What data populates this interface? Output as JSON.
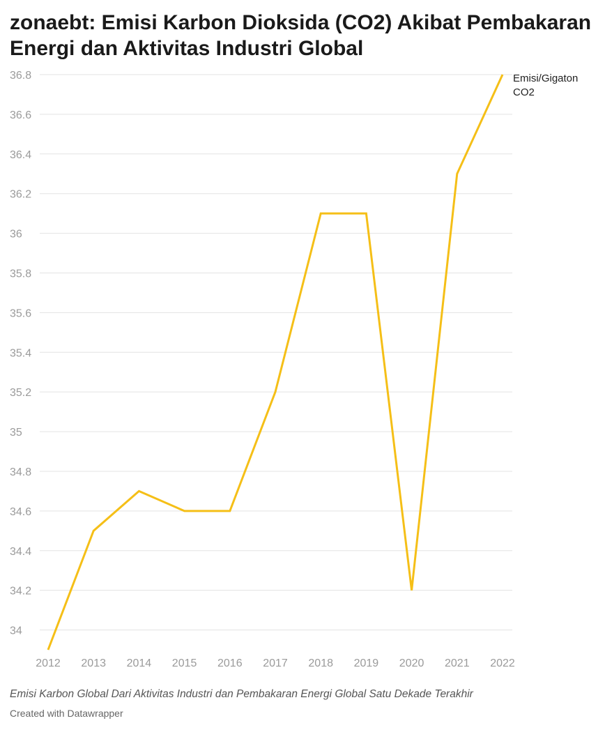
{
  "title": "zonaebt: Emisi Karbon Dioksida (CO2) Akibat Pembakaran Energi dan Aktivitas Industri Global",
  "notes": "Emisi Karbon Global Dari Aktivitas Industri dan Pembakaran Energi Global Satu Dekade Terakhir",
  "byline": "Created with Datawrapper",
  "chart_data": {
    "type": "line",
    "x": [
      "2012",
      "2013",
      "2014",
      "2015",
      "2016",
      "2017",
      "2018",
      "2019",
      "2020",
      "2021",
      "2022"
    ],
    "series": [
      {
        "name": [
          "Emisi/Gigaton",
          "CO2"
        ],
        "values": [
          33.9,
          34.5,
          34.7,
          34.6,
          34.6,
          35.2,
          36.1,
          36.1,
          34.2,
          36.3,
          36.8
        ],
        "color": "#f5bf17"
      }
    ],
    "yticks": [
      "34",
      "34.2",
      "34.4",
      "34.6",
      "34.8",
      "35",
      "35.2",
      "35.4",
      "35.6",
      "35.8",
      "36",
      "36.2",
      "36.4",
      "36.6",
      "36.8"
    ],
    "ylim": [
      33.9,
      36.8
    ],
    "grid": true
  }
}
